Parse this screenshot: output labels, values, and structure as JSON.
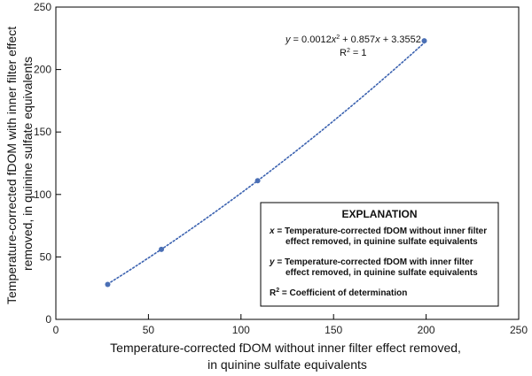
{
  "chart_data": {
    "type": "scatter",
    "title": "",
    "xlabel_lines": [
      "Temperature-corrected fDOM without inner filter effect removed,",
      "in quinine sulfate equivalents"
    ],
    "ylabel_lines": [
      "Temperature-corrected fDOM with inner filter effect",
      "removed, in quinine sulfate equivalents"
    ],
    "xlim": [
      0,
      250
    ],
    "ylim": [
      0,
      250
    ],
    "x_ticks": [
      0,
      50,
      100,
      150,
      200,
      250
    ],
    "y_ticks": [
      0,
      50,
      100,
      150,
      200,
      250
    ],
    "grid": false,
    "series": [
      {
        "x": [
          28,
          57,
          109,
          199
        ],
        "y": [
          28,
          56,
          111,
          223
        ]
      }
    ],
    "trendline": {
      "type": "polynomial",
      "coefficients": [
        0.0012,
        0.857,
        3.3552
      ],
      "style": "dotted"
    },
    "equation": {
      "y": "y",
      "eq_part1": " = 0.0012",
      "x1": "x",
      "sq": "2",
      "eq_part2": " + 0.857",
      "x2": "x",
      "eq_part3": " + 3.3552",
      "r2_label": "R",
      "r2_sup": "2",
      "r2_value": " = 1"
    },
    "legend": {
      "placement": "bottom-right",
      "title": "EXPLANATION",
      "items": [
        {
          "symbol": "x",
          "lines": [
            " = Temperature-corrected fDOM without inner filter",
            "effect removed, in quinine sulfate equivalents"
          ]
        },
        {
          "symbol": "y",
          "lines": [
            " = Temperature-corrected fDOM with inner filter",
            "effect removed, in quinine sulfate equivalents"
          ]
        },
        {
          "symbol": "R",
          "symbol_sup": "2",
          "lines": [
            " = Coefficient of determination"
          ]
        }
      ]
    },
    "colors": {
      "marker": "#4a6fb5",
      "trendline": "#3b62b0",
      "axis": "#000000"
    }
  }
}
